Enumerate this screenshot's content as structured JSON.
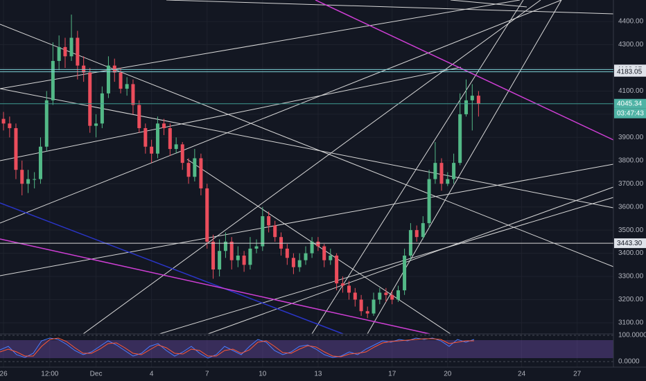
{
  "chart_data": {
    "type": "candlestick",
    "x": [
      0,
      0.33,
      0.67,
      1,
      1.33,
      1.67,
      2,
      2.33,
      2.67,
      3,
      3.33,
      3.67,
      4,
      4.33,
      4.67,
      5,
      5.33,
      5.67,
      6,
      6.33,
      6.67,
      7,
      7.33,
      7.67,
      8,
      8.33,
      8.67,
      9,
      9.33,
      9.67,
      10,
      10.33,
      10.67,
      11,
      11.33,
      11.67,
      12,
      12.33,
      12.67,
      13,
      13.33,
      13.67,
      14,
      14.33,
      14.67,
      15,
      15.33,
      15.67,
      16,
      16.33,
      16.67,
      17,
      17.33,
      17.67,
      18,
      18.33,
      18.67,
      19,
      19.33,
      19.67,
      20,
      20.33,
      20.67,
      21,
      21.33,
      21.67,
      22,
      22.33,
      22.67,
      23,
      23.33,
      23.67,
      24,
      24.33,
      24.67,
      25,
      25.33,
      25.67
    ],
    "open": [
      3980,
      3960,
      3940,
      3760,
      3700,
      3720,
      3720,
      3860,
      4060,
      4230,
      4290,
      4250,
      4330,
      4210,
      4180,
      3950,
      3960,
      4090,
      4210,
      4180,
      4110,
      4130,
      4040,
      3940,
      3860,
      3830,
      3960,
      3940,
      3850,
      3870,
      3790,
      3730,
      3810,
      3680,
      3450,
      3330,
      3410,
      3450,
      3370,
      3390,
      3350,
      3420,
      3430,
      3560,
      3520,
      3470,
      3420,
      3380,
      3340,
      3370,
      3400,
      3450,
      3430,
      3370,
      3390,
      3270,
      3260,
      3230,
      3200,
      3150,
      3140,
      3200,
      3230,
      3220,
      3200,
      3240,
      3390,
      3500,
      3470,
      3530,
      3720,
      3790,
      3700,
      3720,
      3790,
      4000,
      4060,
      4080
    ],
    "high": [
      4010,
      3990,
      3960,
      3800,
      3760,
      3750,
      3900,
      4100,
      4310,
      4340,
      4330,
      4430,
      4360,
      4250,
      4200,
      4000,
      4120,
      4250,
      4240,
      4200,
      4160,
      4150,
      4060,
      3960,
      3890,
      3990,
      3980,
      3960,
      3900,
      3880,
      3810,
      3850,
      3830,
      3700,
      3480,
      3460,
      3490,
      3470,
      3430,
      3410,
      3470,
      3460,
      3600,
      3580,
      3540,
      3490,
      3440,
      3400,
      3400,
      3430,
      3470,
      3470,
      3440,
      3420,
      3400,
      3300,
      3280,
      3250,
      3220,
      3170,
      3230,
      3250,
      3250,
      3240,
      3260,
      3420,
      3530,
      3520,
      3560,
      3760,
      3880,
      3810,
      3750,
      3830,
      4090,
      4150,
      4130,
      4100
    ],
    "low": [
      3930,
      3900,
      3720,
      3650,
      3660,
      3680,
      3700,
      3840,
      4040,
      4190,
      4200,
      4230,
      4150,
      4140,
      3920,
      3900,
      3940,
      4070,
      4140,
      4090,
      4080,
      4000,
      3920,
      3830,
      3790,
      3810,
      3910,
      3820,
      3830,
      3760,
      3700,
      3710,
      3650,
      3420,
      3290,
      3300,
      3380,
      3330,
      3340,
      3320,
      3330,
      3400,
      3410,
      3490,
      3450,
      3390,
      3350,
      3310,
      3320,
      3350,
      3380,
      3410,
      3340,
      3350,
      3240,
      3230,
      3200,
      3170,
      3130,
      3120,
      3130,
      3180,
      3190,
      3180,
      3190,
      3220,
      3370,
      3450,
      3460,
      3510,
      3700,
      3670,
      3690,
      3700,
      3780,
      3990,
      3930,
      3990
    ],
    "close": [
      3960,
      3940,
      3760,
      3700,
      3720,
      3720,
      3860,
      4060,
      4230,
      4290,
      4250,
      4330,
      4210,
      4180,
      3950,
      3960,
      4090,
      4210,
      4180,
      4110,
      4130,
      4040,
      3940,
      3860,
      3830,
      3960,
      3940,
      3850,
      3870,
      3790,
      3730,
      3810,
      3680,
      3450,
      3330,
      3410,
      3450,
      3370,
      3390,
      3350,
      3420,
      3430,
      3560,
      3520,
      3470,
      3420,
      3380,
      3340,
      3370,
      3400,
      3450,
      3430,
      3370,
      3390,
      3270,
      3260,
      3230,
      3200,
      3150,
      3140,
      3200,
      3230,
      3220,
      3200,
      3240,
      3390,
      3500,
      3470,
      3530,
      3720,
      3790,
      3700,
      3720,
      3790,
      4000,
      4060,
      4080,
      4045
    ],
    "up_color": "#53b987",
    "down_color": "#eb4d5c",
    "xlim": [
      -0.19,
      32.96
    ],
    "xticks": [
      {
        "value": 0,
        "label": "26"
      },
      {
        "value": 2.5,
        "label": "12:00"
      },
      {
        "value": 5,
        "label": "Dec"
      },
      {
        "value": 8,
        "label": "4"
      },
      {
        "value": 11,
        "label": "7"
      },
      {
        "value": 14,
        "label": "10"
      },
      {
        "value": 17,
        "label": "13"
      },
      {
        "value": 21,
        "label": "17"
      },
      {
        "value": 24,
        "label": "20"
      },
      {
        "value": 28,
        "label": "24"
      },
      {
        "value": 31,
        "label": "27"
      }
    ],
    "ylim": [
      3052,
      4493
    ],
    "yticks": [
      {
        "value": 3100,
        "label": "3100.00"
      },
      {
        "value": 3200,
        "label": "3200.00"
      },
      {
        "value": 3300,
        "label": "3300.00"
      },
      {
        "value": 3400,
        "label": "3400.00"
      },
      {
        "value": 3500,
        "label": "3500.00"
      },
      {
        "value": 3600,
        "label": "3600.00"
      },
      {
        "value": 3700,
        "label": "3700.00"
      },
      {
        "value": 3800,
        "label": "3800.00"
      },
      {
        "value": 3900,
        "label": "3900.00"
      },
      {
        "value": 4000,
        "label": "4000.00"
      },
      {
        "value": 4100,
        "label": "4100.00"
      },
      {
        "value": 4200,
        "label": "4200.00"
      },
      {
        "value": 4300,
        "label": "4300.00"
      },
      {
        "value": 4400,
        "label": "4400.00"
      }
    ],
    "grid": true,
    "price_lines": [
      {
        "price": 4193.07,
        "color": "#7fd3d8",
        "box": "#dfe3ea",
        "text": "#131722"
      },
      {
        "price": 4183.05,
        "color": "#7fd3d8",
        "box": "#dfe3ea",
        "text": "#131722"
      },
      {
        "price": 4045.34,
        "color": "#3f9c92",
        "box": "#4fb3a5",
        "text": "#ffffff"
      },
      {
        "price": {
          "value": 3443.3,
          "label": "3443.30"
        },
        "color": "#d6d6d6",
        "box": "#dfe3ea",
        "text": "#131722"
      }
    ],
    "countdown": "03:47:43",
    "oscillator": {
      "ylim": [
        0,
        100
      ],
      "yticks": [
        {
          "value": 100,
          "label": "100.0000"
        },
        {
          "value": 0,
          "label": "0.0000"
        }
      ]
    }
  }
}
